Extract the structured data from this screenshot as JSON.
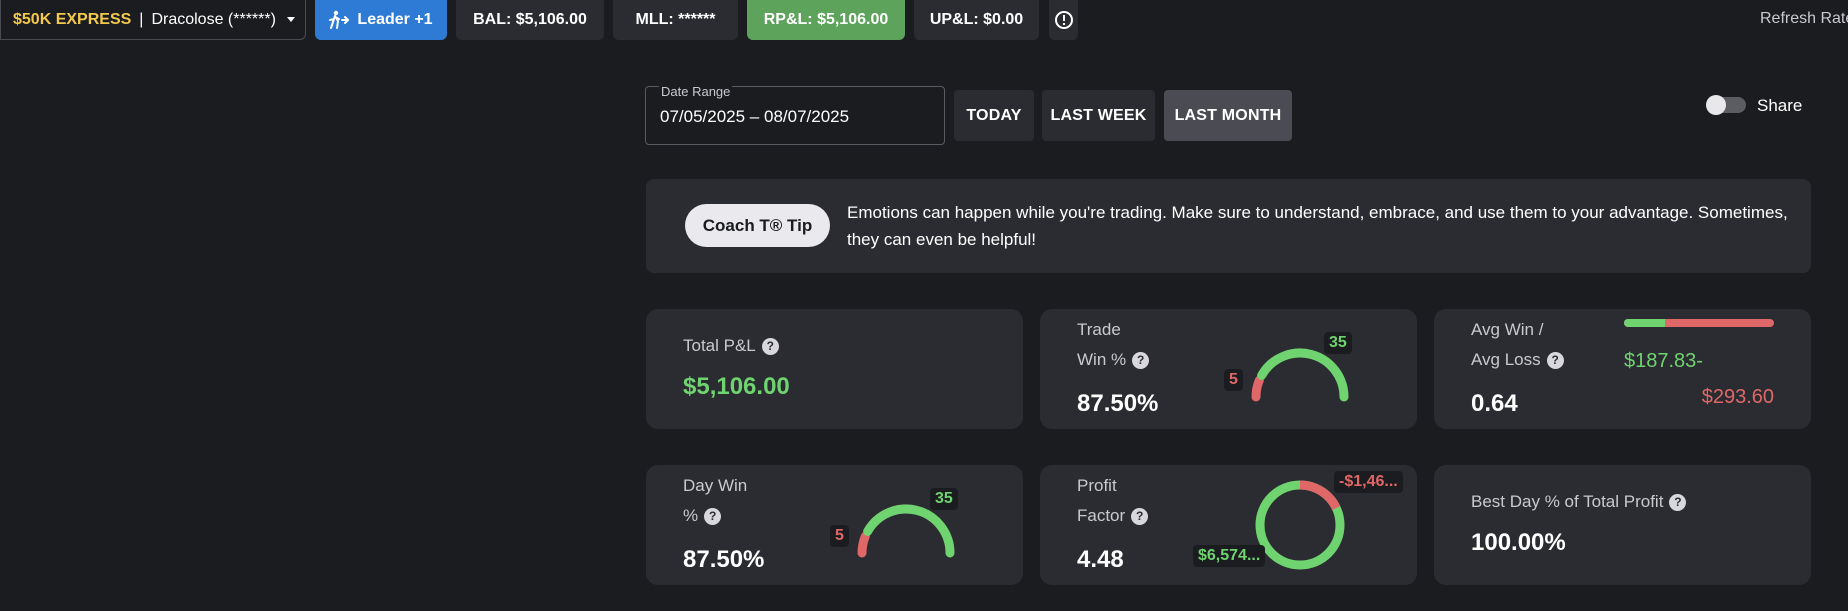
{
  "topbar": {
    "account_name": "$50K EXPRESS",
    "account_separator": "|",
    "account_user": "Dracolose (******)",
    "leader_label": "Leader +1",
    "bal": "BAL: $5,106.00",
    "mll": "MLL: ******",
    "rpl": "RP&L: $5,106.00",
    "upl": "UP&L: $0.00",
    "refresh": "Refresh Rate"
  },
  "date_range": {
    "label": "Date Range",
    "value": "07/05/2025 – 08/07/2025",
    "today": "TODAY",
    "last_week": "LAST WEEK",
    "last_month": "LAST MONTH"
  },
  "share": {
    "label": "Share",
    "enabled": false
  },
  "tip": {
    "button": "Coach T® Tip",
    "text": "Emotions can happen while you're trading. Make sure to understand, embrace, and use them to your advantage. Sometimes, they can even be helpful!"
  },
  "cards": {
    "total_pl": {
      "label": "Total P&L",
      "value": "$5,106.00"
    },
    "trade_win": {
      "label_1": "Trade",
      "label_2": "Win %",
      "value": "87.50%",
      "wins": 35,
      "losses": 5,
      "wins_label": "35",
      "losses_label": "5"
    },
    "avg_win_loss": {
      "label_1": "Avg Win /",
      "label_2": "Avg Loss",
      "value": "0.64",
      "avg_win": "$187.83-",
      "avg_loss": "$293.60",
      "win_fraction": 0.27
    },
    "day_win": {
      "label_1": "Day Win",
      "label_2": "%",
      "value": "87.50%",
      "wins": 35,
      "losses": 5,
      "wins_label": "35",
      "losses_label": "5"
    },
    "profit_factor": {
      "label_1": "Profit",
      "label_2": "Factor",
      "value": "4.48",
      "gross_profit": "$6,574...",
      "gross_loss": "-$1,46...",
      "loss_fraction": 0.18
    },
    "best_day": {
      "label": "Best Day % of Total Profit",
      "value": "100.00%"
    }
  },
  "colors": {
    "green": "#6fd36f",
    "red": "#e06767",
    "blue": "#2e7bd6",
    "pl_green": "#5ea35b",
    "gold": "#f2c94c"
  },
  "icons": {
    "leader": "walking-person-icon",
    "info": "alert-circle-icon",
    "help": "question-icon"
  }
}
